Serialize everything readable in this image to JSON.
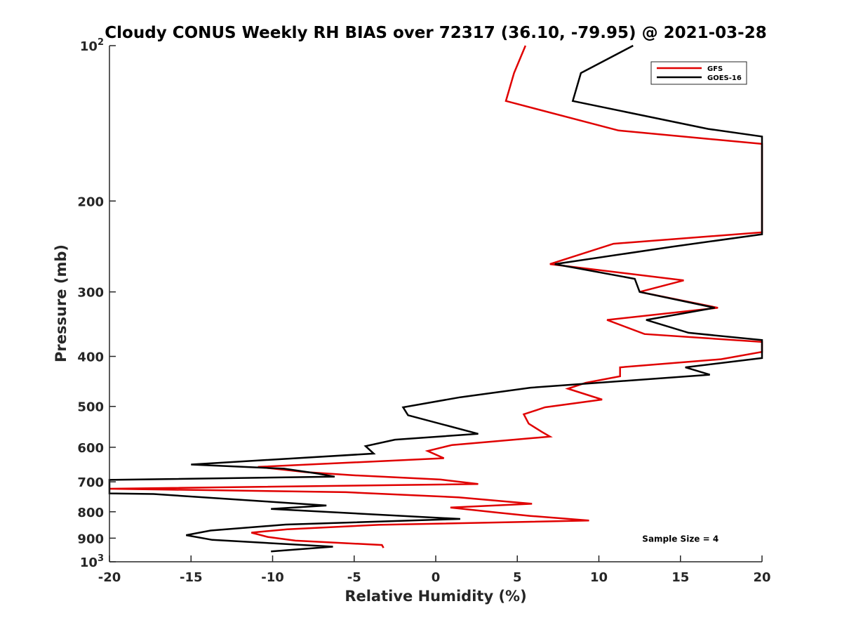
{
  "chart_data": {
    "type": "line",
    "title": "Cloudy CONUS Weekly RH BIAS over 72317 (36.10, -79.95) @ 2021-03-28",
    "xlabel": "Relative Humidity (%)",
    "ylabel": "Pressure (mb)",
    "xlim": [
      -20,
      20
    ],
    "ylim": [
      100,
      1000
    ],
    "y_scale": "log",
    "y_reversed": true,
    "grid": false,
    "legend_position": "top-right",
    "x_ticks": [
      {
        "value": -20,
        "label": "-20"
      },
      {
        "value": -15,
        "label": "-15"
      },
      {
        "value": -10,
        "label": "-10"
      },
      {
        "value": -5,
        "label": "-5"
      },
      {
        "value": 0,
        "label": "0"
      },
      {
        "value": 5,
        "label": "5"
      },
      {
        "value": 10,
        "label": "10"
      },
      {
        "value": 15,
        "label": "15"
      },
      {
        "value": 20,
        "label": "20"
      }
    ],
    "y_ticks": [
      {
        "value": 100,
        "label": "10",
        "sup": "2"
      },
      {
        "value": 200,
        "label": "200",
        "sup": ""
      },
      {
        "value": 300,
        "label": "300",
        "sup": ""
      },
      {
        "value": 400,
        "label": "400",
        "sup": ""
      },
      {
        "value": 500,
        "label": "500",
        "sup": ""
      },
      {
        "value": 600,
        "label": "600",
        "sup": ""
      },
      {
        "value": 700,
        "label": "700",
        "sup": ""
      },
      {
        "value": 800,
        "label": "800",
        "sup": ""
      },
      {
        "value": 900,
        "label": "900",
        "sup": ""
      },
      {
        "value": 1000,
        "label": "10",
        "sup": "3"
      }
    ],
    "series": [
      {
        "name": "GFS",
        "color": "#e00000",
        "points": [
          [
            5.5,
            100
          ],
          [
            4.8,
            113
          ],
          [
            4.3,
            128
          ],
          [
            11.2,
            146
          ],
          [
            20,
            155
          ],
          [
            20,
            230
          ],
          [
            10.9,
            242
          ],
          [
            7.0,
            265
          ],
          [
            15.2,
            285
          ],
          [
            12.5,
            300
          ],
          [
            17.3,
            322
          ],
          [
            10.5,
            340
          ],
          [
            12.8,
            362
          ],
          [
            20,
            375
          ],
          [
            20,
            392
          ],
          [
            17.5,
            405
          ],
          [
            11.3,
            420
          ],
          [
            11.3,
            437
          ],
          [
            9.2,
            450
          ],
          [
            8.1,
            462
          ],
          [
            10.2,
            485
          ],
          [
            6.7,
            502
          ],
          [
            5.4,
            518
          ],
          [
            5.7,
            540
          ],
          [
            6.5,
            560
          ],
          [
            7.0,
            572
          ],
          [
            1.0,
            594
          ],
          [
            -0.5,
            610
          ],
          [
            0.5,
            630
          ],
          [
            -10.9,
            655
          ],
          [
            -8.0,
            670
          ],
          [
            -5.0,
            680
          ],
          [
            0.3,
            693
          ],
          [
            2.6,
            707
          ],
          [
            -20,
            722
          ],
          [
            -5.5,
            733
          ],
          [
            1.4,
            750
          ],
          [
            5.9,
            772
          ],
          [
            0.9,
            785
          ],
          [
            3.8,
            803
          ],
          [
            5.8,
            815
          ],
          [
            9.4,
            832
          ],
          [
            -3.5,
            848
          ],
          [
            -9.1,
            865
          ],
          [
            -11.3,
            878
          ],
          [
            -10.3,
            895
          ],
          [
            -8.6,
            910
          ],
          [
            -3.3,
            928
          ],
          [
            -3.2,
            940
          ]
        ]
      },
      {
        "name": "GOES-16",
        "color": "#000000",
        "points": [
          [
            12.1,
            100
          ],
          [
            8.9,
            113
          ],
          [
            8.4,
            128
          ],
          [
            16.7,
            145
          ],
          [
            20,
            150
          ],
          [
            20,
            232
          ],
          [
            14.6,
            245
          ],
          [
            7.3,
            265
          ],
          [
            12.2,
            283
          ],
          [
            12.5,
            300
          ],
          [
            17.1,
            322
          ],
          [
            12.9,
            340
          ],
          [
            15.5,
            360
          ],
          [
            20,
            372
          ],
          [
            20,
            403
          ],
          [
            15.3,
            420
          ],
          [
            16.8,
            434
          ],
          [
            5.8,
            460
          ],
          [
            1.5,
            480
          ],
          [
            -2.0,
            502
          ],
          [
            -1.7,
            520
          ],
          [
            2.6,
            565
          ],
          [
            -2.5,
            580
          ],
          [
            -4.3,
            597
          ],
          [
            -3.8,
            617
          ],
          [
            -15.0,
            648
          ],
          [
            -9.3,
            660
          ],
          [
            -7.2,
            675
          ],
          [
            -6.2,
            684
          ],
          [
            -20,
            694
          ],
          [
            -20,
            737
          ],
          [
            -17.3,
            739
          ],
          [
            -10.4,
            764
          ],
          [
            -6.7,
            778
          ],
          [
            -10.1,
            790
          ],
          [
            1.5,
            826
          ],
          [
            -9.2,
            847
          ],
          [
            -13.8,
            870
          ],
          [
            -15.3,
            888
          ],
          [
            -13.7,
            907
          ],
          [
            -6.3,
            935
          ],
          [
            -10.1,
            955
          ]
        ]
      }
    ],
    "annotations": [
      {
        "text": "Sample Size = 4",
        "x": 15,
        "y": 900
      }
    ]
  }
}
